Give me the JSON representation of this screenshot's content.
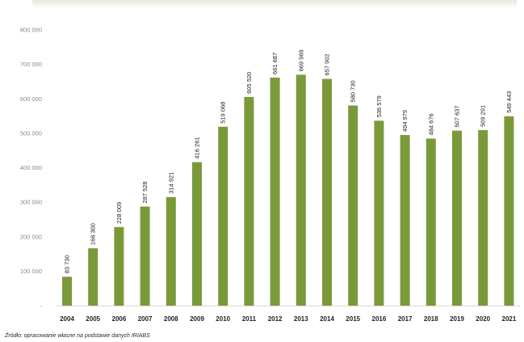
{
  "chart_data": {
    "type": "bar",
    "categories": [
      "2004",
      "2005",
      "2006",
      "2007",
      "2008",
      "2009",
      "2010",
      "2011",
      "2012",
      "2013",
      "2014",
      "2015",
      "2016",
      "2017",
      "2018",
      "2019",
      "2020",
      "2021"
    ],
    "series": [
      {
        "values": [
          83730,
          166300,
          228009,
          287528,
          314921,
          416261,
          519068,
          605520,
          661687,
          669969,
          657902,
          580730,
          536579,
          494979,
          484676,
          507637,
          509291,
          549443
        ],
        "labels": [
          "83 730",
          "166 300",
          "228 009",
          "287 528",
          "314 921",
          "416 261",
          "519 068",
          "605 520",
          "661 687",
          "669 969",
          "657 902",
          "580 730",
          "536 579",
          "494 979",
          "484 676",
          "507 637",
          "509 291",
          "549 443"
        ],
        "color": "#7a9a3a"
      }
    ],
    "y_ticks": [
      0,
      100000,
      200000,
      300000,
      400000,
      500000,
      600000,
      700000,
      800000
    ],
    "y_tick_labels": [
      "-",
      "100 000",
      "200 000",
      "300 000",
      "400 000",
      "500 000",
      "600 000",
      "700 000",
      "800 000"
    ],
    "ylim": [
      0,
      800000
    ],
    "grid": false,
    "legend": "none"
  },
  "source": "Źródło: opracowanie własne na podstawie danych IRIABS"
}
